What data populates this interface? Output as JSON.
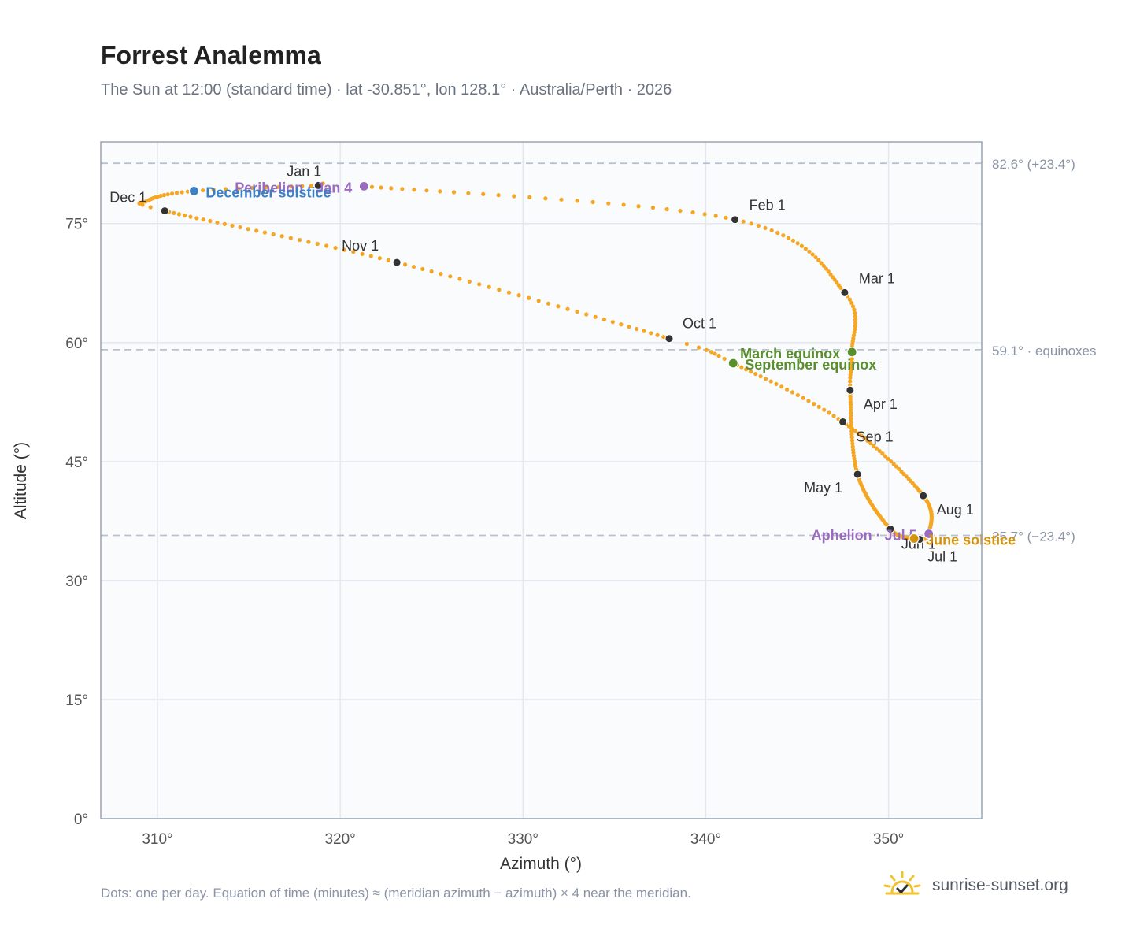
{
  "title": "Forrest Analemma",
  "subtitle": "The Sun at 12:00 (standard time) · lat -30.851°, lon 128.1° · Australia/Perth · 2026",
  "footnote": "Dots: one per day. Equation of time (minutes) ≈ (meridian azimuth − azimuth) × 4 near the meridian.",
  "brand": {
    "name": "sunrise-sunset.org",
    "icon": "sun-check-icon",
    "color": "#f2c12e"
  },
  "colors": {
    "curve": "#f5a623",
    "month_marker": "#333333",
    "perihelion_aphelion": "#9b6bbf",
    "december_solstice": "#3b7fc4",
    "equinox": "#5a8f2e",
    "june_solstice": "#d4930e",
    "reference_line": "#b8c2cf",
    "grid": "#e4e8ee",
    "plot_bg": "#fafbfd",
    "axis": "#9aa5b4"
  },
  "chart_data": {
    "type": "scatter",
    "title": "Forrest Analemma",
    "xlabel": "Azimuth (°)",
    "ylabel": "Altitude (°)",
    "xlim": [
      306.9,
      355.1
    ],
    "ylim": [
      0,
      85.3
    ],
    "x_ticks": [
      310,
      320,
      330,
      340,
      350
    ],
    "x_tick_labels": [
      "310°",
      "320°",
      "330°",
      "340°",
      "350°"
    ],
    "y_ticks": [
      0,
      15,
      30,
      45,
      60,
      75
    ],
    "y_tick_labels": [
      "0°",
      "15°",
      "30°",
      "45°",
      "60°",
      "75°"
    ],
    "grid": true,
    "series": [
      {
        "kind": "daily_path",
        "anchors": [
          {
            "doy": 0,
            "az": 318.8,
            "alt": 79.8
          },
          {
            "doy": 3,
            "az": 321.3,
            "alt": 79.7
          },
          {
            "doy": 31,
            "az": 341.6,
            "alt": 75.5
          },
          {
            "doy": 59,
            "az": 347.6,
            "alt": 66.3
          },
          {
            "doy": 78,
            "az": 348.0,
            "alt": 58.8
          },
          {
            "doy": 90,
            "az": 347.9,
            "alt": 54.0
          },
          {
            "doy": 120,
            "az": 348.3,
            "alt": 43.4
          },
          {
            "doy": 151,
            "az": 350.1,
            "alt": 36.5
          },
          {
            "doy": 171,
            "az": 351.4,
            "alt": 35.3
          },
          {
            "doy": 181,
            "az": 351.7,
            "alt": 35.2
          },
          {
            "doy": 185,
            "az": 352.2,
            "alt": 35.9
          },
          {
            "doy": 212,
            "az": 351.9,
            "alt": 40.7
          },
          {
            "doy": 243,
            "az": 347.5,
            "alt": 50.0
          },
          {
            "doy": 265,
            "az": 341.5,
            "alt": 57.4
          },
          {
            "doy": 273,
            "az": 338.0,
            "alt": 60.5
          },
          {
            "doy": 304,
            "az": 323.1,
            "alt": 70.1
          },
          {
            "doy": 334,
            "az": 310.4,
            "alt": 76.6
          },
          {
            "doy": 341,
            "az": 309.5,
            "alt": 77.9
          },
          {
            "doy": 354,
            "az": 312.0,
            "alt": 79.1
          },
          {
            "doy": 365,
            "az": 318.8,
            "alt": 79.8
          }
        ]
      }
    ],
    "month_markers": [
      {
        "label": "Jan 1",
        "az": 318.8,
        "alt": 79.8
      },
      {
        "label": "Feb 1",
        "az": 341.6,
        "alt": 75.5
      },
      {
        "label": "Mar 1",
        "az": 347.6,
        "alt": 66.3
      },
      {
        "label": "Apr 1",
        "az": 347.9,
        "alt": 54.0
      },
      {
        "label": "May 1",
        "az": 348.3,
        "alt": 43.4
      },
      {
        "label": "Jun 1",
        "az": 350.1,
        "alt": 36.5
      },
      {
        "label": "Jul 1",
        "az": 351.7,
        "alt": 35.2
      },
      {
        "label": "Aug 1",
        "az": 351.9,
        "alt": 40.7
      },
      {
        "label": "Sep 1",
        "az": 347.5,
        "alt": 50.0
      },
      {
        "label": "Oct 1",
        "az": 338.0,
        "alt": 60.5
      },
      {
        "label": "Nov 1",
        "az": 323.1,
        "alt": 70.1
      },
      {
        "label": "Dec 1",
        "az": 310.4,
        "alt": 76.6
      }
    ],
    "events": [
      {
        "label": "Perihelion · Jan 4",
        "az": 321.3,
        "alt": 79.7,
        "color_key": "perihelion_aphelion",
        "anchor": "end"
      },
      {
        "label": "December solstice",
        "az": 312.0,
        "alt": 79.1,
        "color_key": "december_solstice",
        "anchor": "start"
      },
      {
        "label": "March equinox",
        "az": 348.0,
        "alt": 58.8,
        "color_key": "equinox",
        "anchor": "end"
      },
      {
        "label": "September equinox",
        "az": 341.5,
        "alt": 57.4,
        "color_key": "equinox",
        "anchor": "start"
      },
      {
        "label": "Aphelion · Jul 5",
        "az": 352.2,
        "alt": 35.9,
        "color_key": "perihelion_aphelion",
        "anchor": "end"
      },
      {
        "label": "June solstice",
        "az": 351.4,
        "alt": 35.3,
        "color_key": "june_solstice",
        "anchor": "start"
      }
    ],
    "reference_lines": [
      {
        "alt": 82.6,
        "label": "82.6° (+23.4°)"
      },
      {
        "alt": 59.1,
        "label": "59.1° · equinoxes"
      },
      {
        "alt": 35.7,
        "label": "35.7° (−23.4°)"
      }
    ]
  }
}
